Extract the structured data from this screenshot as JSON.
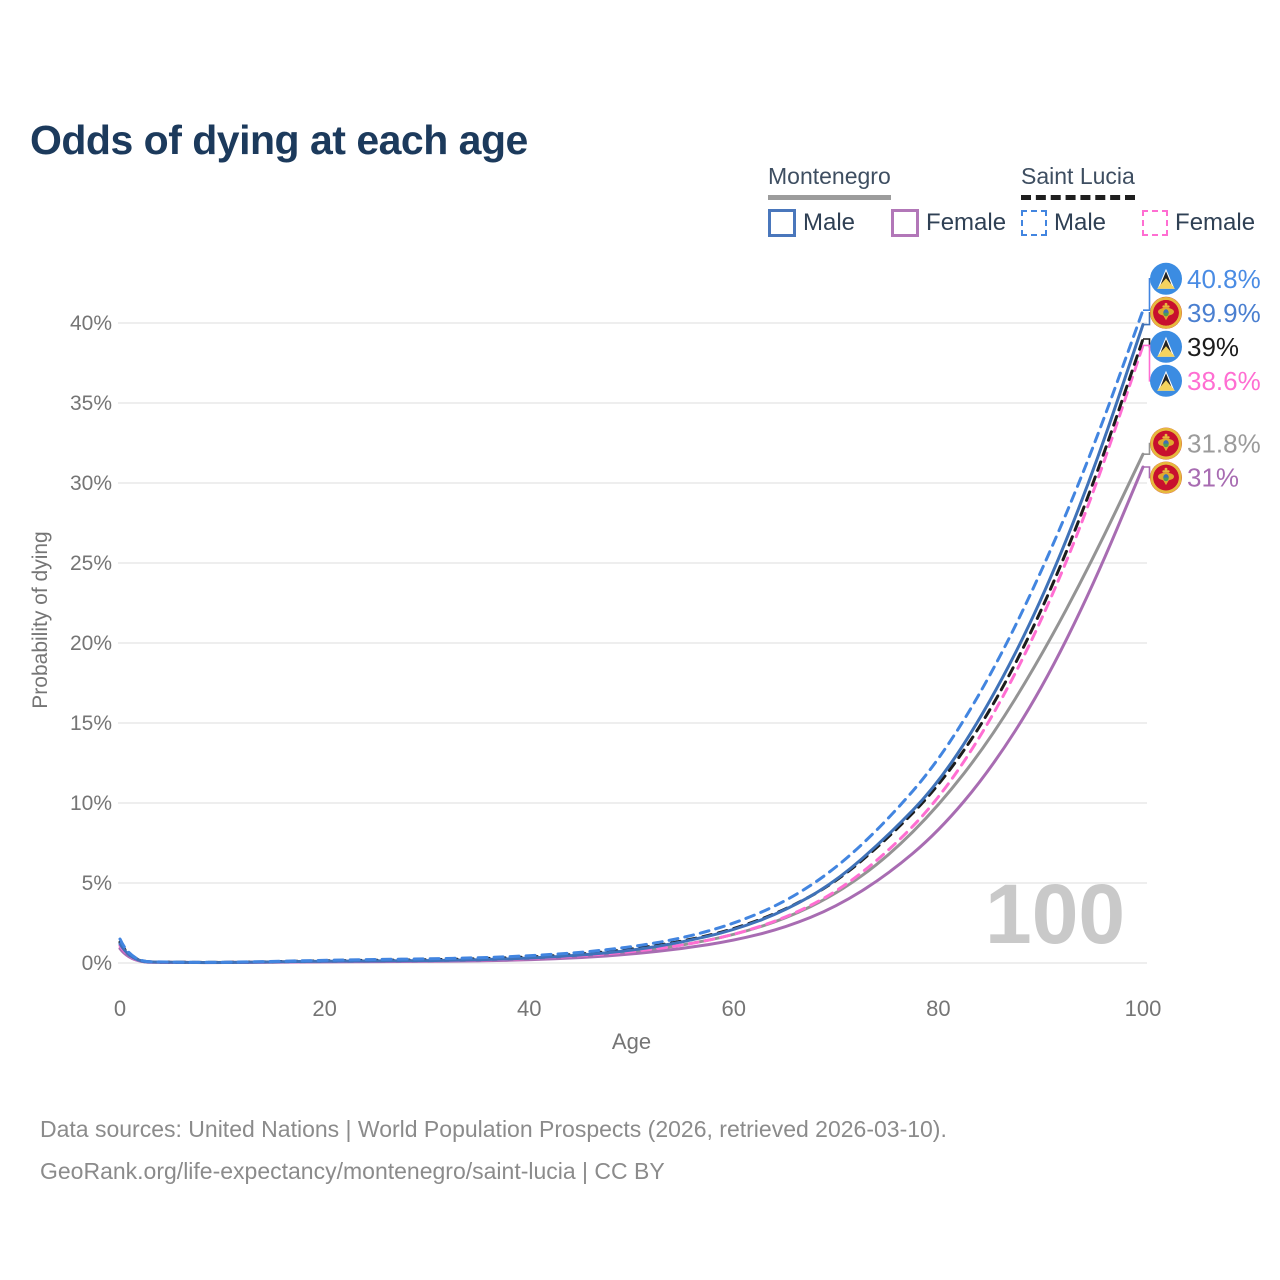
{
  "page": {
    "title": "Odds of dying at each age",
    "watermark": "100"
  },
  "legend": {
    "groups": [
      {
        "label": "Montenegro",
        "line_style": "solid",
        "underline_color": "#9c9c9c",
        "items": [
          {
            "label": "Male",
            "color": "#4a77bc"
          },
          {
            "label": "Female",
            "color": "#b277b8"
          }
        ]
      },
      {
        "label": "Saint Lucia",
        "line_style": "dashed",
        "underline_color": "#1f1f1f",
        "items": [
          {
            "label": "Male",
            "color": "#4285e0"
          },
          {
            "label": "Female",
            "color": "#ff6ed2"
          }
        ]
      }
    ]
  },
  "chart_data": {
    "type": "line",
    "title": "Odds of dying at each age",
    "xlabel": "Age",
    "ylabel": "Probability of dying",
    "xlim": [
      0,
      100
    ],
    "ylim": [
      0,
      40
    ],
    "grid": "horizontal",
    "legend_position": "top-right",
    "xticks": [
      {
        "v": 0,
        "label": "0"
      },
      {
        "v": 20,
        "label": "20"
      },
      {
        "v": 40,
        "label": "40"
      },
      {
        "v": 60,
        "label": "60"
      },
      {
        "v": 80,
        "label": "80"
      },
      {
        "v": 100,
        "label": "100"
      }
    ],
    "yticks": [
      {
        "v": 0,
        "label": "0%"
      },
      {
        "v": 5,
        "label": "5%"
      },
      {
        "v": 10,
        "label": "10%"
      },
      {
        "v": 15,
        "label": "15%"
      },
      {
        "v": 20,
        "label": "20%"
      },
      {
        "v": 25,
        "label": "25%"
      },
      {
        "v": 30,
        "label": "30%"
      },
      {
        "v": 35,
        "label": "35%"
      },
      {
        "v": 40,
        "label": "40%"
      }
    ],
    "x": [
      0,
      1,
      5,
      10,
      15,
      20,
      25,
      30,
      35,
      40,
      45,
      50,
      55,
      60,
      65,
      70,
      75,
      80,
      85,
      90,
      95,
      100
    ],
    "series": [
      {
        "name": "Montenegro combined",
        "country": "Montenegro",
        "icon": "montenegro-flag-icon",
        "color": "#949494",
        "dash": false,
        "end_label": "31.8%",
        "label_color": "#9b9b9b",
        "values": [
          1.1,
          0.07,
          0.035,
          0.03,
          0.06,
          0.09,
          0.11,
          0.13,
          0.17,
          0.26,
          0.42,
          0.68,
          1.1,
          1.75,
          2.75,
          4.3,
          6.6,
          9.8,
          13.9,
          19.1,
          25.1,
          31.8
        ]
      },
      {
        "name": "Montenegro Female",
        "country": "Montenegro",
        "icon": "montenegro-flag-icon",
        "color": "#a86cb2",
        "dash": false,
        "end_label": "31%",
        "label_color": "#a86cb2",
        "values": [
          0.9,
          0.06,
          0.03,
          0.025,
          0.05,
          0.07,
          0.09,
          0.1,
          0.13,
          0.2,
          0.33,
          0.55,
          0.9,
          1.4,
          2.2,
          3.5,
          5.5,
          8.2,
          12.0,
          17.0,
          23.4,
          31.0
        ]
      },
      {
        "name": "Saint Lucia Female",
        "country": "Saint Lucia",
        "icon": "saint-lucia-flag-icon",
        "color": "#ff6ed2",
        "dash": true,
        "end_label": "38.6%",
        "label_color": "#ff6ed2",
        "values": [
          1.1,
          0.07,
          0.04,
          0.03,
          0.06,
          0.1,
          0.12,
          0.14,
          0.18,
          0.28,
          0.44,
          0.7,
          1.1,
          1.75,
          2.8,
          4.4,
          6.9,
          10.2,
          15.0,
          21.2,
          29.0,
          38.6
        ]
      },
      {
        "name": "Saint Lucia combined",
        "country": "Saint Lucia",
        "icon": "saint-lucia-flag-icon",
        "color": "#1c1c1c",
        "dash": true,
        "end_label": "39%",
        "label_color": "#1c1c1c",
        "values": [
          1.3,
          0.09,
          0.045,
          0.035,
          0.08,
          0.14,
          0.17,
          0.2,
          0.26,
          0.37,
          0.55,
          0.85,
          1.35,
          2.1,
          3.3,
          5.05,
          7.75,
          11.0,
          15.6,
          21.8,
          29.6,
          39.0
        ]
      },
      {
        "name": "Montenegro Male",
        "country": "Montenegro",
        "icon": "montenegro-flag-icon",
        "color": "#3f72b8",
        "dash": false,
        "end_label": "39.9%",
        "label_color": "#4a7fd0",
        "values": [
          1.2,
          0.08,
          0.04,
          0.03,
          0.07,
          0.11,
          0.13,
          0.15,
          0.2,
          0.3,
          0.48,
          0.78,
          1.3,
          2.05,
          3.25,
          5.1,
          7.9,
          11.2,
          16.2,
          22.5,
          30.4,
          39.9
        ]
      },
      {
        "name": "Saint Lucia Male",
        "country": "Saint Lucia",
        "icon": "saint-lucia-flag-icon",
        "color": "#4285e0",
        "dash": true,
        "end_label": "40.8%",
        "label_color": "#4a8ce4",
        "values": [
          1.5,
          0.1,
          0.05,
          0.04,
          0.1,
          0.17,
          0.22,
          0.26,
          0.32,
          0.45,
          0.65,
          1.0,
          1.55,
          2.45,
          3.8,
          5.9,
          8.9,
          12.6,
          17.8,
          24.3,
          31.9,
          40.8
        ]
      }
    ]
  },
  "footer": {
    "line1": "Data sources: United Nations | World Population Prospects (2026, retrieved 2026-03-10).",
    "line2": "GeoRank.org/life-expectancy/montenegro/saint-lucia | CC BY"
  }
}
